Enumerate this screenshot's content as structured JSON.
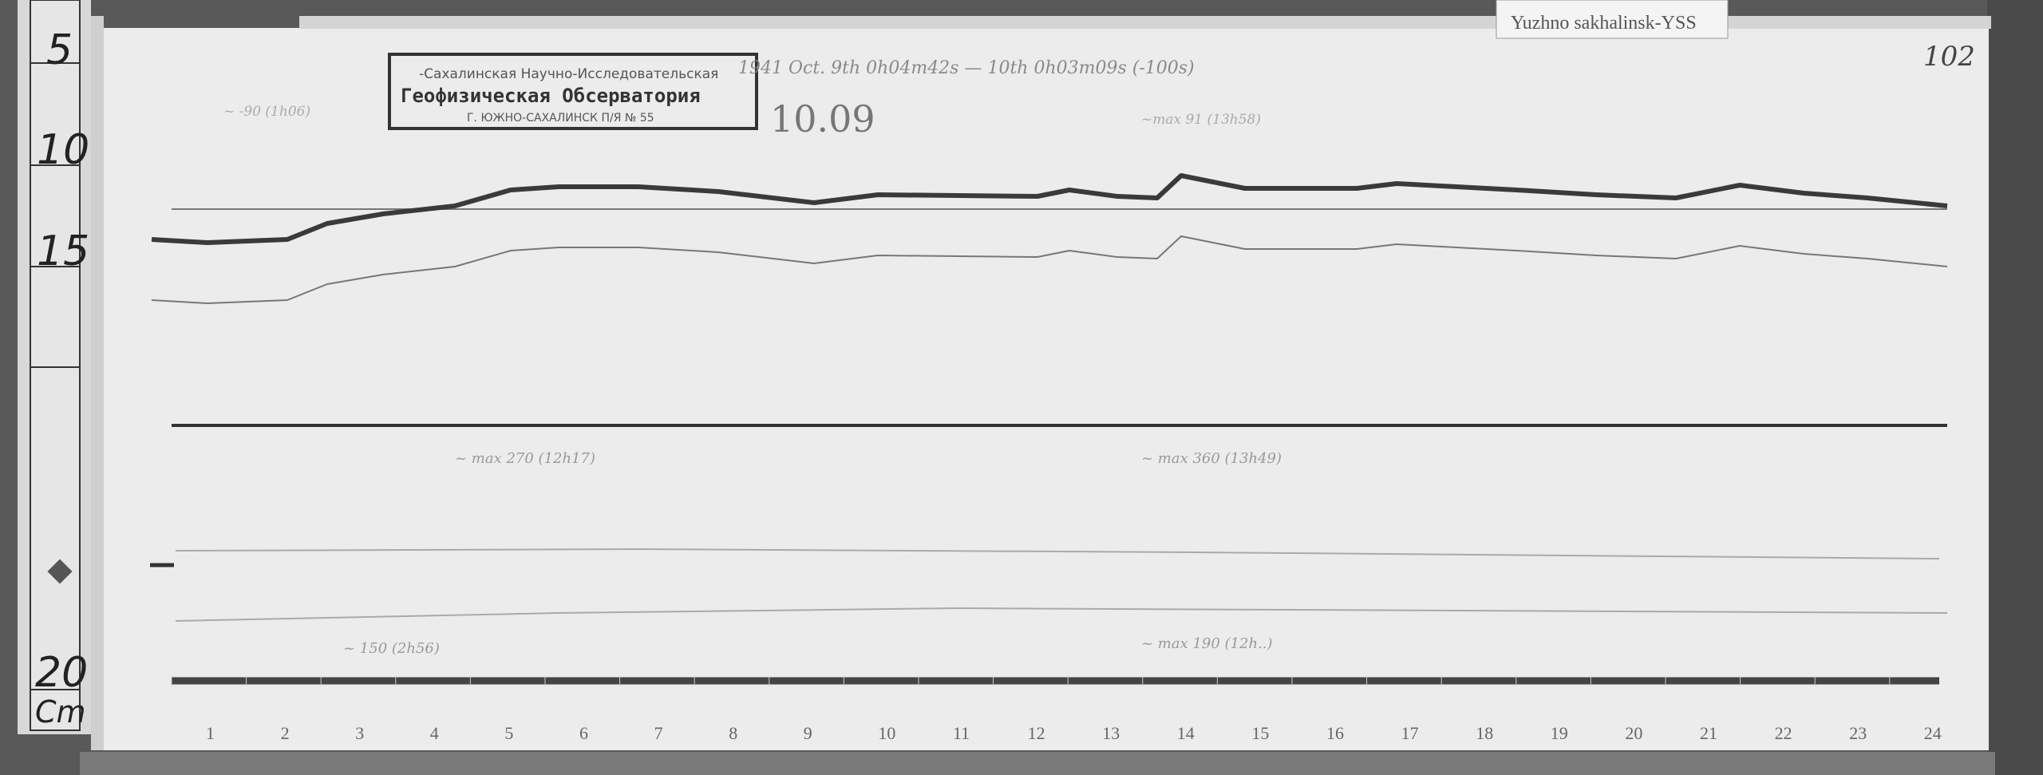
{
  "station_label": "Yuzhno sakhalinsk-YSS",
  "sheet_number": "102",
  "stamp": {
    "line1": "-Сахалинская Научно-Исследовательская",
    "line2": "Геофизическая Обсерватория",
    "line3": "Г. ЮЖНО-САХАЛИНСК П/Я № 55"
  },
  "header_note": "1941 Oct. 9th 0h04m42s — 10th 0h03m09s (-100s)",
  "date_note": "10.09",
  "annotations": [
    "~ -90 (1h06)",
    "~max 91 (13h58)",
    "~ max 270 (12h17)",
    "~ max 360 (13h49)",
    "~ 150 (2h56)",
    "~ max 190 (12h..)"
  ],
  "ruler": {
    "marks": [
      "5",
      "10",
      "15",
      "20"
    ],
    "unit": "Cm"
  },
  "hours": [
    "1",
    "2",
    "3",
    "4",
    "5",
    "6",
    "7",
    "8",
    "9",
    "10",
    "11",
    "12",
    "13",
    "14",
    "15",
    "16",
    "17",
    "18",
    "19",
    "20",
    "21",
    "22",
    "23",
    "24"
  ],
  "colors": {
    "background": "#555555",
    "paper": "#ececec",
    "trace": "#3a3a3a"
  }
}
